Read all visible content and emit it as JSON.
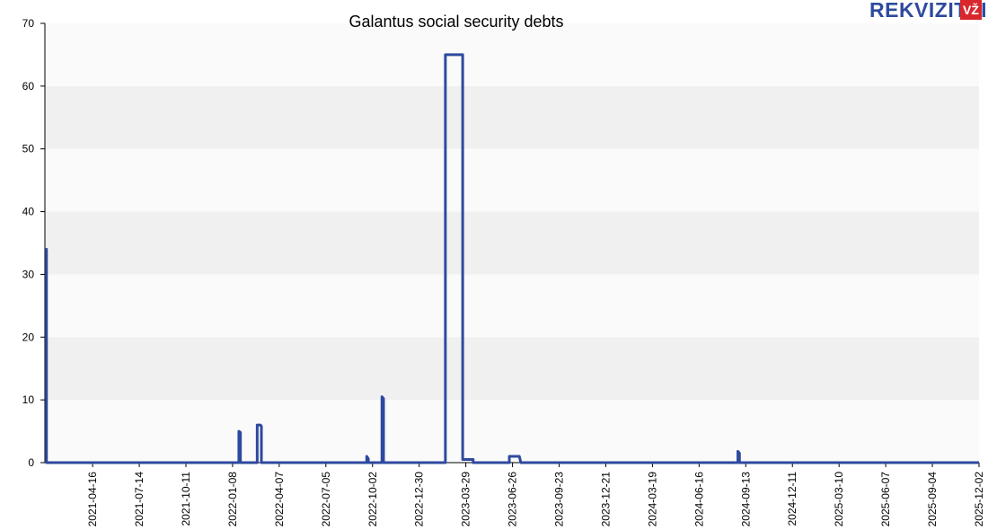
{
  "logo": {
    "text": "REKVIZITAI",
    "badge": "VŽ"
  },
  "colors": {
    "line": "#2e4a9e",
    "band_light": "#fafafa",
    "band_dark": "#f0f0f0",
    "axis": "#000000",
    "logo_badge": "#d9262c"
  },
  "chart_data": {
    "type": "line",
    "title": "Galantus social security debts",
    "xlabel": "",
    "ylabel": "",
    "ylim": [
      0,
      70
    ],
    "yticks": [
      0,
      10,
      20,
      30,
      40,
      50,
      60,
      70
    ],
    "xlim": [
      "2021-01-15",
      "2025-12-02"
    ],
    "xticks": [
      "2021-04-16",
      "2021-07-14",
      "2021-10-11",
      "2022-01-08",
      "2022-04-07",
      "2022-07-05",
      "2022-10-02",
      "2022-12-30",
      "2023-03-29",
      "2023-06-26",
      "2023-09-23",
      "2023-12-21",
      "2024-03-19",
      "2024-06-16",
      "2024-09-13",
      "2024-12-11",
      "2025-03-10",
      "2025-06-07",
      "2025-09-04",
      "2025-12-02"
    ],
    "grid": "horizontal bands",
    "series": [
      {
        "points": [
          [
            "2021-01-15",
            34
          ],
          [
            "2021-01-18",
            34
          ],
          [
            "2021-01-18",
            0
          ],
          [
            "2022-01-20",
            0
          ],
          [
            "2022-01-20",
            5
          ],
          [
            "2022-01-23",
            4.8
          ],
          [
            "2022-01-23",
            0
          ],
          [
            "2022-02-24",
            0
          ],
          [
            "2022-02-24",
            6
          ],
          [
            "2022-03-02",
            6
          ],
          [
            "2022-03-04",
            5.8
          ],
          [
            "2022-03-04",
            0
          ],
          [
            "2022-09-21",
            0
          ],
          [
            "2022-09-21",
            1
          ],
          [
            "2022-09-24",
            0.6
          ],
          [
            "2022-09-24",
            0
          ],
          [
            "2022-10-20",
            0
          ],
          [
            "2022-10-20",
            10.5
          ],
          [
            "2022-10-23",
            10.2
          ],
          [
            "2022-10-23",
            0
          ],
          [
            "2023-02-18",
            0
          ],
          [
            "2023-02-18",
            65
          ],
          [
            "2023-03-23",
            65
          ],
          [
            "2023-03-23",
            0.5
          ],
          [
            "2023-04-12",
            0.5
          ],
          [
            "2023-04-12",
            0
          ],
          [
            "2023-06-20",
            0
          ],
          [
            "2023-06-20",
            1
          ],
          [
            "2023-07-09",
            1
          ],
          [
            "2023-07-12",
            0
          ],
          [
            "2024-08-29",
            0
          ],
          [
            "2024-08-29",
            1.8
          ],
          [
            "2024-09-01",
            1.5
          ],
          [
            "2024-09-01",
            0
          ],
          [
            "2025-12-02",
            0
          ]
        ]
      }
    ]
  }
}
